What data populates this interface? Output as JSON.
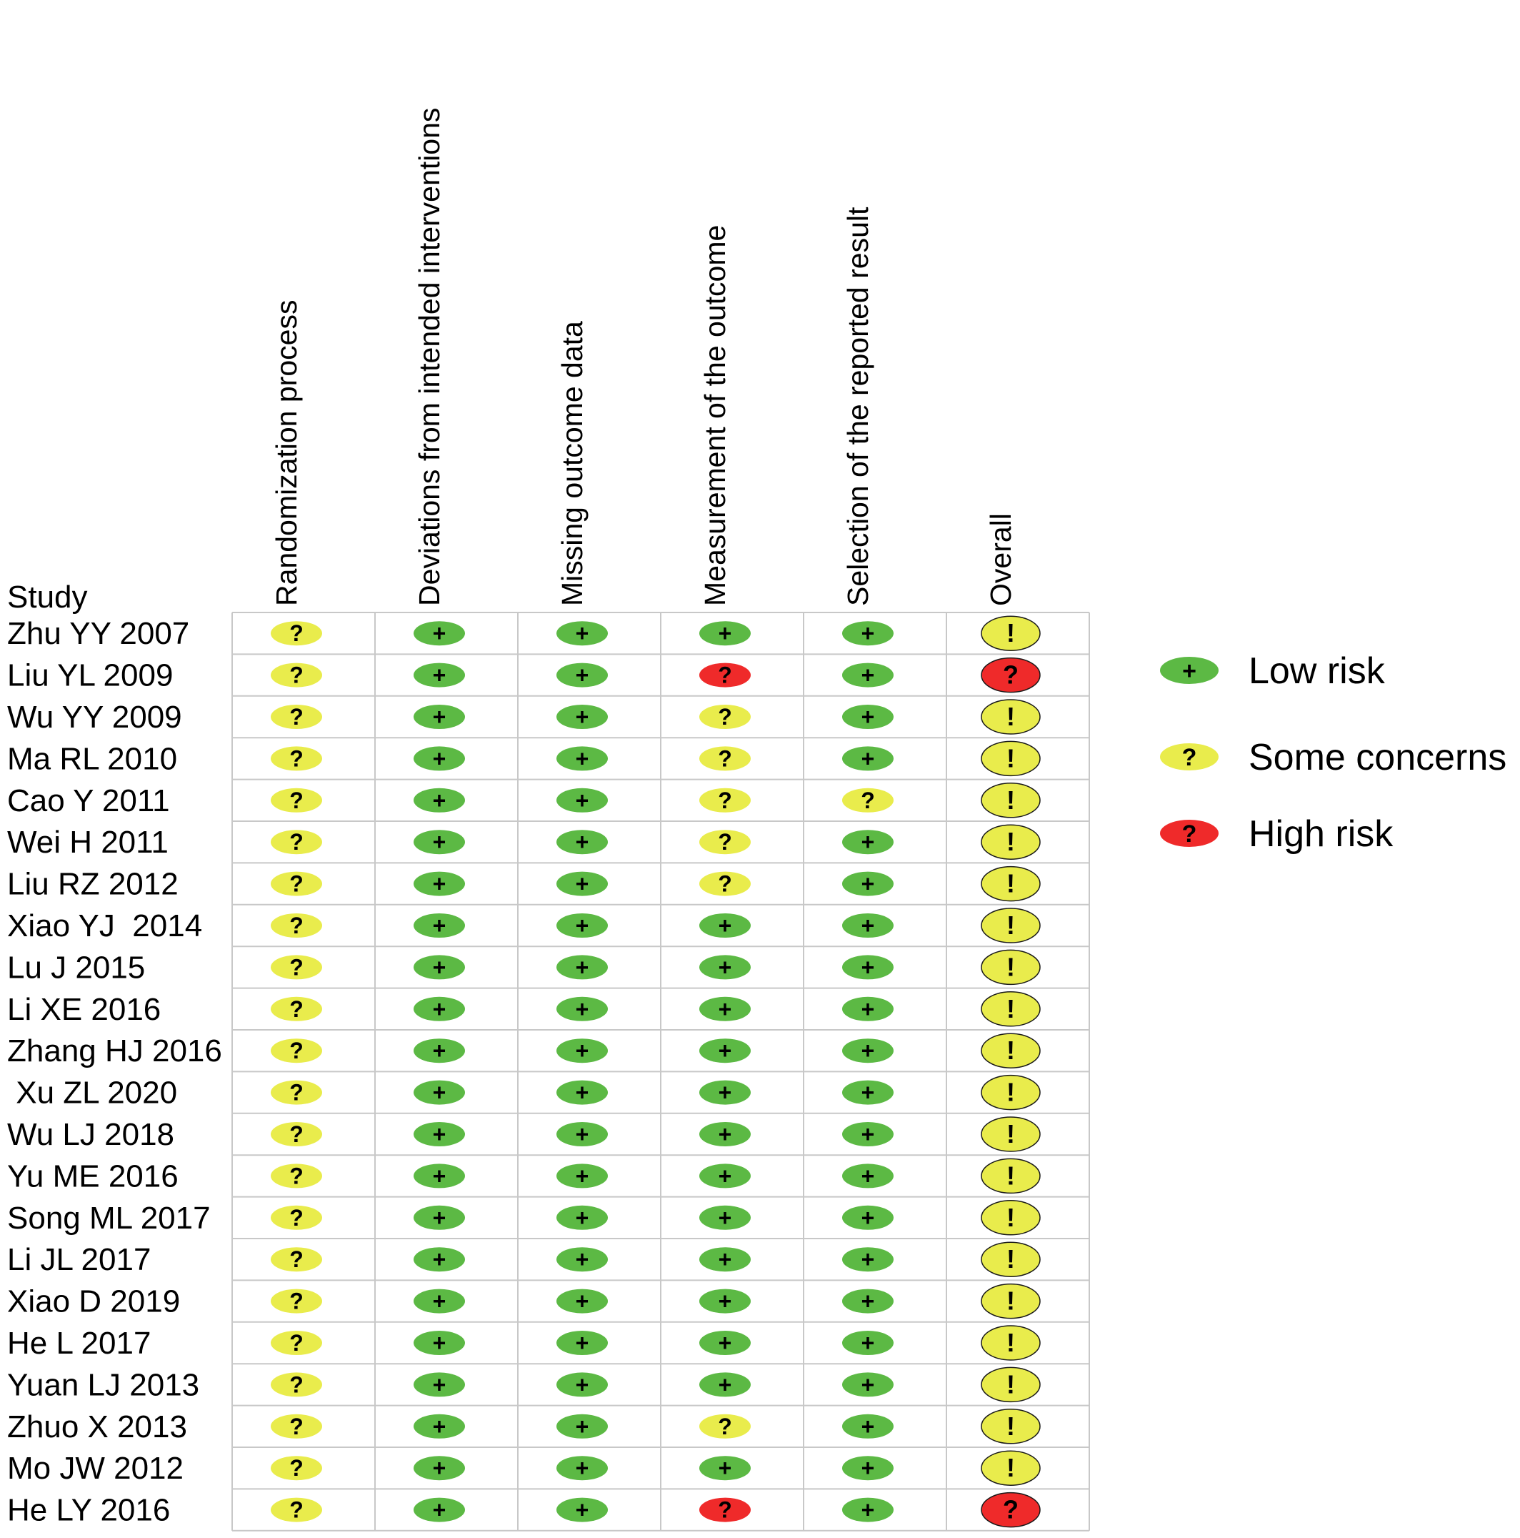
{
  "chart_data": {
    "type": "table",
    "title": "",
    "row_header": "Study",
    "columns": [
      "Randomization process",
      "Deviations from intended interventions",
      "Missing outcome data",
      "Measurement of the outcome",
      "Selection of the reported result",
      "Overall"
    ],
    "judgements": {
      "low": {
        "symbol": "+",
        "label": "Low risk",
        "color": "#5cb944"
      },
      "some": {
        "symbol": "?",
        "label": "Some concerns",
        "color": "#e9ec4c"
      },
      "high": {
        "symbol": "?",
        "label": "High risk",
        "color": "#ef2a2a"
      }
    },
    "overall_symbol": "!",
    "legend": {
      "position": "right",
      "items": [
        "low",
        "some",
        "high"
      ]
    },
    "rows": [
      {
        "study": "Zhu YY 2007",
        "values": [
          "some",
          "low",
          "low",
          "low",
          "low",
          "some"
        ]
      },
      {
        "study": "Liu YL 2009",
        "values": [
          "some",
          "low",
          "low",
          "high",
          "low",
          "high"
        ]
      },
      {
        "study": "Wu YY 2009",
        "values": [
          "some",
          "low",
          "low",
          "some",
          "low",
          "some"
        ]
      },
      {
        "study": "Ma RL 2010",
        "values": [
          "some",
          "low",
          "low",
          "some",
          "low",
          "some"
        ]
      },
      {
        "study": "Cao Y 2011",
        "values": [
          "some",
          "low",
          "low",
          "some",
          "some",
          "some"
        ]
      },
      {
        "study": "Wei H 2011",
        "values": [
          "some",
          "low",
          "low",
          "some",
          "low",
          "some"
        ]
      },
      {
        "study": "Liu RZ 2012",
        "values": [
          "some",
          "low",
          "low",
          "some",
          "low",
          "some"
        ]
      },
      {
        "study": "Xiao YJ  2014",
        "values": [
          "some",
          "low",
          "low",
          "low",
          "low",
          "some"
        ]
      },
      {
        "study": "Lu J 2015",
        "values": [
          "some",
          "low",
          "low",
          "low",
          "low",
          "some"
        ]
      },
      {
        "study": "Li XE 2016",
        "values": [
          "some",
          "low",
          "low",
          "low",
          "low",
          "some"
        ]
      },
      {
        "study": "Zhang HJ 2016",
        "values": [
          "some",
          "low",
          "low",
          "low",
          "low",
          "some"
        ]
      },
      {
        "study": " Xu ZL 2020",
        "values": [
          "some",
          "low",
          "low",
          "low",
          "low",
          "some"
        ]
      },
      {
        "study": "Wu LJ 2018",
        "values": [
          "some",
          "low",
          "low",
          "low",
          "low",
          "some"
        ]
      },
      {
        "study": "Yu ME 2016",
        "values": [
          "some",
          "low",
          "low",
          "low",
          "low",
          "some"
        ]
      },
      {
        "study": "Song ML 2017",
        "values": [
          "some",
          "low",
          "low",
          "low",
          "low",
          "some"
        ]
      },
      {
        "study": "Li JL 2017",
        "values": [
          "some",
          "low",
          "low",
          "low",
          "low",
          "some"
        ]
      },
      {
        "study": "Xiao D 2019",
        "values": [
          "some",
          "low",
          "low",
          "low",
          "low",
          "some"
        ]
      },
      {
        "study": "He L 2017",
        "values": [
          "some",
          "low",
          "low",
          "low",
          "low",
          "some"
        ]
      },
      {
        "study": "Yuan LJ 2013",
        "values": [
          "some",
          "low",
          "low",
          "low",
          "low",
          "some"
        ]
      },
      {
        "study": "Zhuo X 2013",
        "values": [
          "some",
          "low",
          "low",
          "some",
          "low",
          "some"
        ]
      },
      {
        "study": "Mo JW 2012",
        "values": [
          "some",
          "low",
          "low",
          "low",
          "low",
          "some"
        ]
      },
      {
        "study": "He LY 2016",
        "values": [
          "some",
          "low",
          "low",
          "high",
          "low",
          "high"
        ]
      }
    ]
  }
}
